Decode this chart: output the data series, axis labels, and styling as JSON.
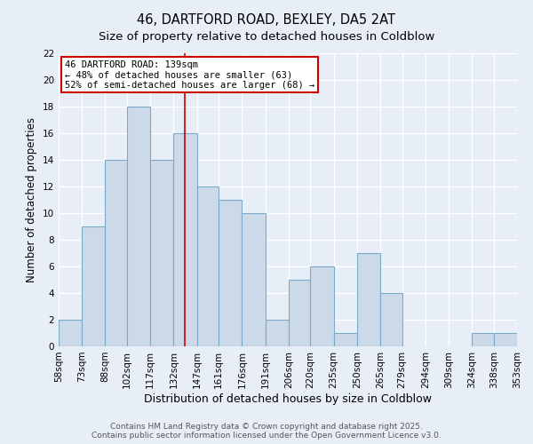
{
  "title": "46, DARTFORD ROAD, BEXLEY, DA5 2AT",
  "subtitle": "Size of property relative to detached houses in Coldblow",
  "xlabel": "Distribution of detached houses by size in Coldblow",
  "ylabel": "Number of detached properties",
  "bin_edges": [
    58,
    73,
    88,
    102,
    117,
    132,
    147,
    161,
    176,
    191,
    206,
    220,
    235,
    250,
    265,
    279,
    294,
    309,
    324,
    338,
    353
  ],
  "bar_heights": [
    2,
    9,
    14,
    18,
    14,
    16,
    12,
    11,
    10,
    2,
    5,
    6,
    1,
    7,
    4,
    0,
    0,
    0,
    1,
    1
  ],
  "bar_color": "#ccd9e8",
  "bar_edgecolor": "#7aaac8",
  "bar_linewidth": 0.8,
  "vline_x": 139,
  "vline_color": "#cc0000",
  "vline_linewidth": 1.2,
  "ylim": [
    0,
    22
  ],
  "yticks": [
    0,
    2,
    4,
    6,
    8,
    10,
    12,
    14,
    16,
    18,
    20,
    22
  ],
  "annotation_text": "46 DARTFORD ROAD: 139sqm\n← 48% of detached houses are smaller (63)\n52% of semi-detached houses are larger (68) →",
  "annotation_box_color": "#ffffff",
  "annotation_box_edgecolor": "#cc0000",
  "annotation_fontsize": 7.5,
  "background_color": "#e8eef8",
  "grid_color": "#ffffff",
  "footer_text": "Contains HM Land Registry data © Crown copyright and database right 2025.\nContains public sector information licensed under the Open Government Licence v3.0.",
  "title_fontsize": 10.5,
  "subtitle_fontsize": 9.5,
  "xlabel_fontsize": 9,
  "ylabel_fontsize": 8.5,
  "tick_labelsize": 7.5,
  "footer_fontsize": 6.5
}
